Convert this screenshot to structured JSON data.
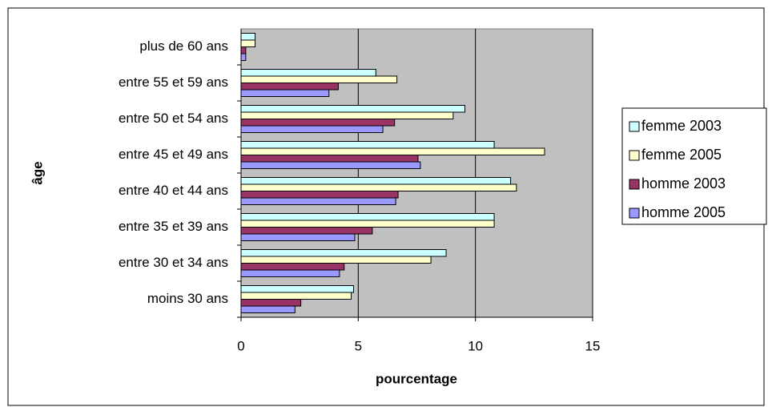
{
  "chart_data": {
    "type": "bar",
    "orientation": "horizontal",
    "xlabel": "pourcentage",
    "ylabel": "âge",
    "categories": [
      "moins 30 ans",
      "entre 30 et 34 ans",
      "entre 35 et 39 ans",
      "entre 40 et 44 ans",
      "entre 45 et 49 ans",
      "entre 50 et 54 ans",
      "entre 55 et 59 ans",
      "plus de 60 ans"
    ],
    "series": [
      {
        "name": "femme 2003",
        "color": "#ccffff",
        "values": [
          4.8,
          8.75,
          10.8,
          11.5,
          10.8,
          9.55,
          5.75,
          0.6
        ]
      },
      {
        "name": "femme 2005",
        "color": "#ffffcc",
        "values": [
          4.7,
          8.1,
          10.8,
          11.75,
          12.95,
          9.05,
          6.65,
          0.6
        ]
      },
      {
        "name": "homme 2003",
        "color": "#993366",
        "values": [
          2.55,
          4.4,
          5.6,
          6.7,
          7.55,
          6.55,
          4.15,
          0.2
        ]
      },
      {
        "name": "homme 2005",
        "color": "#9999ff",
        "values": [
          2.3,
          4.2,
          4.85,
          6.6,
          7.65,
          6.05,
          3.75,
          0.2
        ]
      }
    ],
    "xlim": [
      0,
      15
    ],
    "xticks": [
      0,
      5,
      10,
      15
    ],
    "grid": true,
    "legend": "right"
  }
}
